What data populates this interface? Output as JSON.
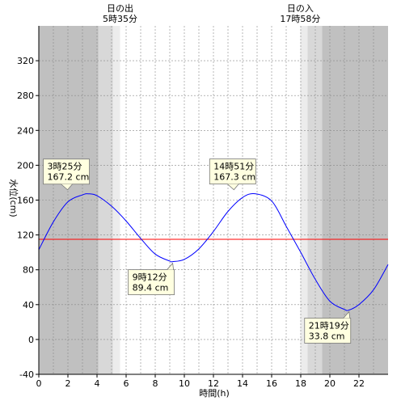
{
  "chart_data": {
    "type": "line",
    "xlabel": "時間(h)",
    "ylabel": "水位(cm)",
    "xlim": [
      0,
      24
    ],
    "ylim": [
      -40,
      360
    ],
    "x_ticks": [
      0,
      2,
      4,
      6,
      8,
      10,
      12,
      14,
      16,
      18,
      20,
      22
    ],
    "y_ticks": [
      -40,
      0,
      40,
      80,
      120,
      160,
      200,
      240,
      280,
      320
    ],
    "grid": true,
    "reference_line": {
      "value": 115,
      "color": "#ff0000"
    },
    "sunrise": {
      "title": "日の出",
      "time": "5時35分",
      "hour": 5.583
    },
    "sunset": {
      "title": "日の入",
      "time": "17時58分",
      "hour": 17.967
    },
    "series": [
      {
        "color": "#0000ff",
        "x": [
          0,
          1,
          2,
          3,
          3.42,
          4,
          5,
          6,
          7,
          8,
          9,
          9.2,
          10,
          11,
          12,
          13,
          14,
          14.85,
          16,
          17,
          18,
          19,
          20,
          21,
          21.32,
          22,
          23,
          24
        ],
        "y": [
          103,
          135,
          158,
          166,
          167.2,
          165,
          153,
          136,
          116,
          98,
          90,
          89.4,
          92,
          104,
          124,
          147,
          163,
          167.3,
          159,
          130,
          100,
          69,
          44,
          34.5,
          33.8,
          40,
          57,
          86
        ]
      }
    ],
    "annotations": [
      {
        "line1": "3時25分",
        "line2": "167.2 cm",
        "x": 3.42,
        "y": 167.2,
        "side": "above"
      },
      {
        "line1": "9時12分",
        "line2": "89.4 cm",
        "x": 9.2,
        "y": 89.4,
        "side": "below"
      },
      {
        "line1": "14時51分",
        "line2": "167.3 cm",
        "x": 14.85,
        "y": 167.3,
        "side": "above"
      },
      {
        "line1": "21時19分",
        "line2": "33.8 cm",
        "x": 21.32,
        "y": 33.8,
        "side": "below"
      }
    ],
    "colors": {
      "night": "#c0c0c0",
      "twilight": "#d8d8d8",
      "dawn": "#ececec",
      "day": "#ffffff",
      "grid": "#888888",
      "callout_fill": "#ffffe0",
      "curve": "#0000ff",
      "reference": "#ff0000"
    }
  }
}
